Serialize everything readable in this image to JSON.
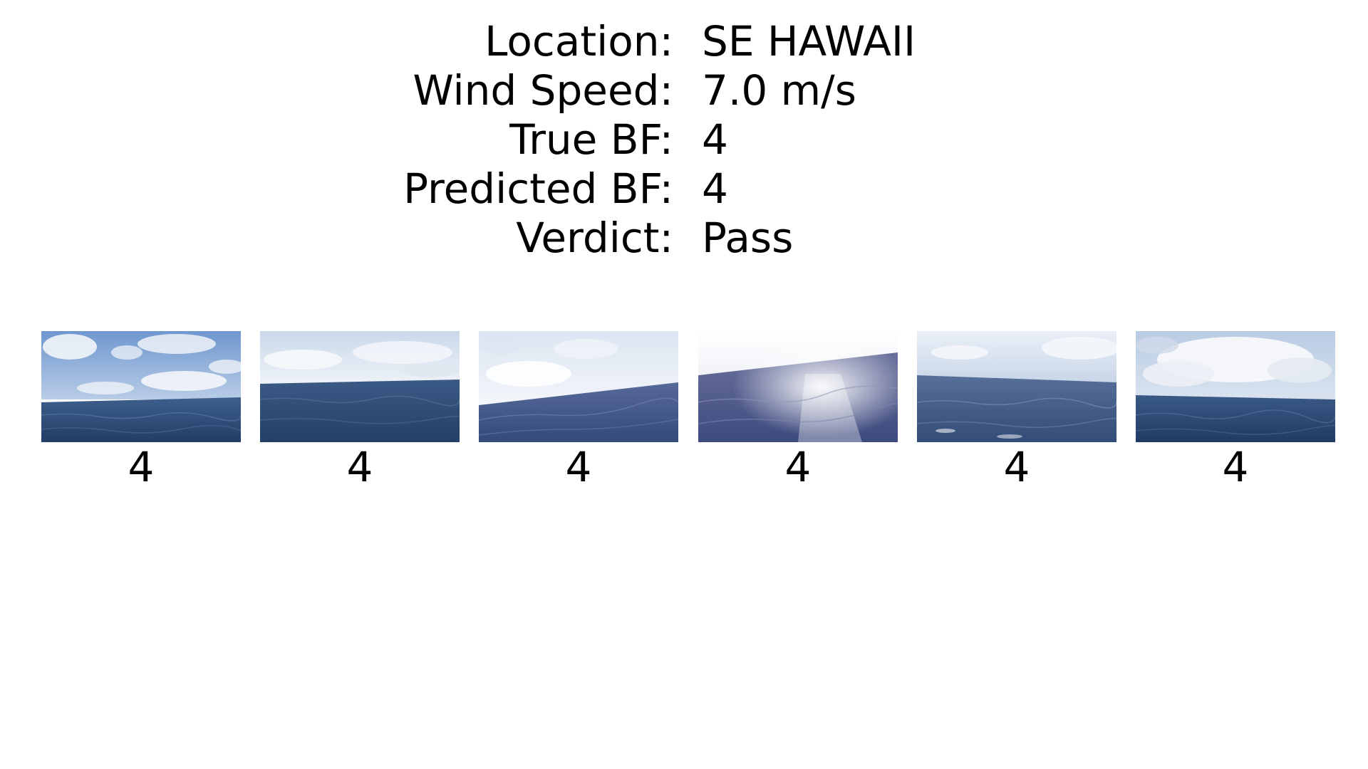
{
  "info": {
    "rows": [
      {
        "label": "Location:",
        "value": "SE HAWAII"
      },
      {
        "label": "Wind Speed:",
        "value": "7.0 m/s"
      },
      {
        "label": "True BF:",
        "value": "4"
      },
      {
        "label": "Predicted BF:",
        "value": "4"
      },
      {
        "label": "Verdict:",
        "value": "Pass"
      }
    ]
  },
  "frames": [
    {
      "label": "4",
      "sky": "#8fb0d8",
      "sea": "#2f4f7a"
    },
    {
      "label": "4",
      "sky": "#dfe8f3",
      "sea": "#34527d"
    },
    {
      "label": "4",
      "sky": "#e6edf6",
      "sea": "#4a5f88"
    },
    {
      "label": "4",
      "sky": "#f7f9fc",
      "sea": "#56618e"
    },
    {
      "label": "4",
      "sky": "#e9f0f8",
      "sea": "#4d6389"
    },
    {
      "label": "4",
      "sky": "#d9e2ee",
      "sea": "#2e4b72"
    }
  ]
}
